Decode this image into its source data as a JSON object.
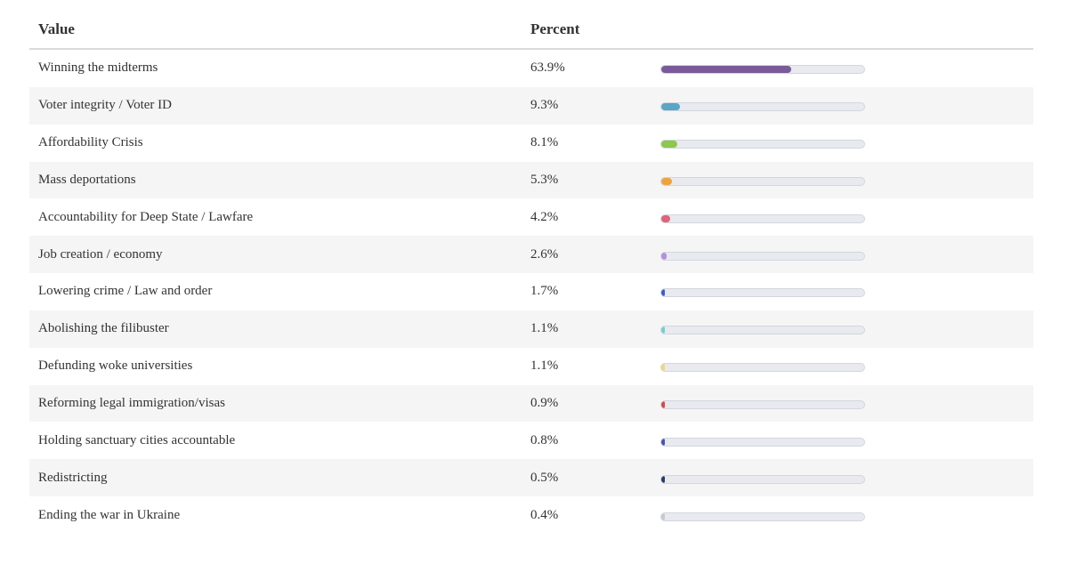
{
  "table": {
    "headers": {
      "value": "Value",
      "percent": "Percent"
    },
    "rows": [
      {
        "label": "Winning the midterms",
        "percent_text": "63.9%",
        "percent": 63.9,
        "color": "#7b5a9a"
      },
      {
        "label": "Voter integrity / Voter ID",
        "percent_text": "9.3%",
        "percent": 9.3,
        "color": "#5aa5c8"
      },
      {
        "label": "Affordability Crisis",
        "percent_text": "8.1%",
        "percent": 8.1,
        "color": "#8cc84b"
      },
      {
        "label": "Mass deportations",
        "percent_text": "5.3%",
        "percent": 5.3,
        "color": "#f0a33a"
      },
      {
        "label": "Accountability for Deep State / Lawfare",
        "percent_text": "4.2%",
        "percent": 4.2,
        "color": "#e0637a"
      },
      {
        "label": "Job creation / economy",
        "percent_text": "2.6%",
        "percent": 2.6,
        "color": "#b48ee0"
      },
      {
        "label": "Lowering crime / Law and order",
        "percent_text": "1.7%",
        "percent": 1.7,
        "color": "#3a5fc8"
      },
      {
        "label": "Abolishing the filibuster",
        "percent_text": "1.1%",
        "percent": 1.1,
        "color": "#6ed2c8"
      },
      {
        "label": "Defunding woke universities",
        "percent_text": "1.1%",
        "percent": 1.1,
        "color": "#f0d878"
      },
      {
        "label": "Reforming legal immigration/visas",
        "percent_text": "0.9%",
        "percent": 0.9,
        "color": "#d84848"
      },
      {
        "label": "Holding sanctuary cities accountable",
        "percent_text": "0.8%",
        "percent": 0.8,
        "color": "#4a52b8"
      },
      {
        "label": "Redistricting",
        "percent_text": "0.5%",
        "percent": 0.5,
        "color": "#2a3a6a"
      },
      {
        "label": "Ending the war in Ukraine",
        "percent_text": "0.4%",
        "percent": 0.4,
        "color": "#c8c8d0"
      }
    ]
  }
}
